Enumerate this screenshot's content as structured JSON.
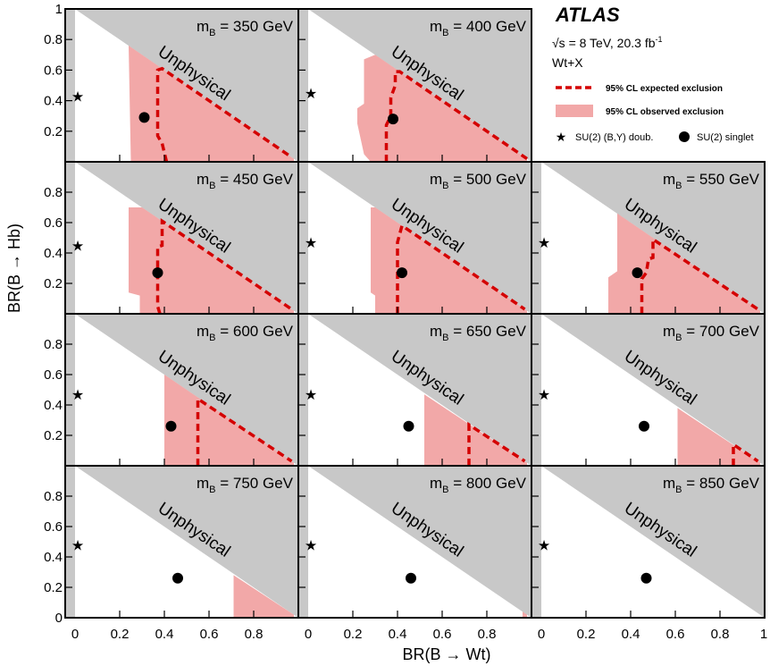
{
  "chart_data": {
    "type": "area",
    "experiment": "ATLAS",
    "energy_text": "√s = 8 TeV,  20.3 fb",
    "energy_sup": "-1",
    "channel": "Wt+X",
    "xlabel": "BR(B → Wt)",
    "ylabel": "BR(B → Hb)",
    "xlim": [
      0,
      1
    ],
    "ylim": [
      0,
      1
    ],
    "x_ticks": [
      "0",
      "0.2",
      "0.4",
      "0.6",
      "0.8",
      "1"
    ],
    "y_ticks": [
      "0.2",
      "0.4",
      "0.6",
      "0.8",
      "1"
    ],
    "y_ticks_inner": [
      "0.2",
      "0.4",
      "0.6",
      "0.8"
    ],
    "unphysical_label": "Unphysical",
    "legend": {
      "expected": "95% CL expected exclusion",
      "observed": "95% CL observed exclusion",
      "doublet": "SU(2) (B,Y) doub.",
      "singlet": "SU(2) singlet"
    },
    "colors": {
      "observed_fill": "#f2a8a8",
      "expected_line": "#d40000",
      "unphysical_fill": "#c8c8c8",
      "marker": "#000000"
    },
    "panels": [
      {
        "label": "m",
        "sub": "B",
        "mass": " = 350 GeV",
        "observed": [
          [
            0.3,
            0
          ],
          [
            0.25,
            0
          ],
          [
            0.24,
            0.76
          ],
          [
            0.37,
            0.63
          ],
          [
            0.98,
            0.02
          ],
          [
            0.98,
            0
          ]
        ],
        "expected": [
          [
            0.41,
            0
          ],
          [
            0.39,
            0.12
          ],
          [
            0.37,
            0.17
          ],
          [
            0.37,
            0.6
          ],
          [
            0.39,
            0.61
          ],
          [
            0.97,
            0.03
          ]
        ],
        "doublet": [
          0,
          0.43
        ],
        "singlet": [
          0.31,
          0.29
        ]
      },
      {
        "label": "m",
        "sub": "B",
        "mass": " = 400 GeV",
        "observed": [
          [
            0.28,
            0
          ],
          [
            0.25,
            0.05
          ],
          [
            0.22,
            0.25
          ],
          [
            0.22,
            0.35
          ],
          [
            0.25,
            0.38
          ],
          [
            0.25,
            0.67
          ],
          [
            0.3,
            0.7
          ],
          [
            0.98,
            0.02
          ],
          [
            0.98,
            0
          ]
        ],
        "expected": [
          [
            0.35,
            0
          ],
          [
            0.35,
            0.24
          ],
          [
            0.37,
            0.3
          ],
          [
            0.37,
            0.42
          ],
          [
            0.39,
            0.5
          ],
          [
            0.39,
            0.59
          ],
          [
            0.41,
            0.59
          ],
          [
            0.98,
            0.02
          ]
        ],
        "doublet": [
          0,
          0.45
        ],
        "singlet": [
          0.38,
          0.28
        ]
      },
      {
        "label": "m",
        "sub": "B",
        "mass": " = 450 GeV",
        "observed": [
          [
            0.29,
            0
          ],
          [
            0.29,
            0.12
          ],
          [
            0.24,
            0.14
          ],
          [
            0.24,
            0.7
          ],
          [
            0.3,
            0.7
          ],
          [
            0.98,
            0.02
          ],
          [
            0.98,
            0
          ]
        ],
        "expected": [
          [
            0.38,
            0
          ],
          [
            0.37,
            0.05
          ],
          [
            0.37,
            0.44
          ],
          [
            0.39,
            0.45
          ],
          [
            0.39,
            0.61
          ],
          [
            0.97,
            0.03
          ]
        ],
        "doublet": [
          0,
          0.45
        ],
        "singlet": [
          0.37,
          0.27
        ]
      },
      {
        "label": "m",
        "sub": "B",
        "mass": " = 500 GeV",
        "observed": [
          [
            0.3,
            0
          ],
          [
            0.3,
            0.12
          ],
          [
            0.28,
            0.14
          ],
          [
            0.28,
            0.7
          ],
          [
            0.3,
            0.7
          ],
          [
            0.98,
            0.02
          ],
          [
            0.98,
            0
          ]
        ],
        "expected": [
          [
            0.4,
            0
          ],
          [
            0.4,
            0.47
          ],
          [
            0.42,
            0.58
          ],
          [
            0.97,
            0.03
          ]
        ],
        "doublet": [
          0,
          0.47
        ],
        "singlet": [
          0.42,
          0.27
        ]
      },
      {
        "label": "m",
        "sub": "B",
        "mass": " = 550 GeV",
        "observed": [
          [
            0.3,
            0
          ],
          [
            0.3,
            0.24
          ],
          [
            0.34,
            0.28
          ],
          [
            0.34,
            0.66
          ],
          [
            0.98,
            0.02
          ],
          [
            0.98,
            0
          ]
        ],
        "expected": [
          [
            0.45,
            0
          ],
          [
            0.45,
            0.23
          ],
          [
            0.47,
            0.27
          ],
          [
            0.48,
            0.36
          ],
          [
            0.5,
            0.37
          ],
          [
            0.5,
            0.49
          ],
          [
            0.97,
            0.03
          ]
        ],
        "doublet": [
          0,
          0.47
        ],
        "singlet": [
          0.43,
          0.27
        ]
      },
      {
        "label": "m",
        "sub": "B",
        "mass": " = 600 GeV",
        "observed": [
          [
            0.4,
            0
          ],
          [
            0.4,
            0.6
          ],
          [
            0.98,
            0.02
          ],
          [
            0.98,
            0
          ]
        ],
        "expected": [
          [
            0.55,
            0
          ],
          [
            0.55,
            0.44
          ],
          [
            0.97,
            0.03
          ]
        ],
        "doublet": [
          0,
          0.47
        ],
        "singlet": [
          0.43,
          0.26
        ]
      },
      {
        "label": "m",
        "sub": "B",
        "mass": " = 650 GeV",
        "observed": [
          [
            0.52,
            0
          ],
          [
            0.52,
            0.47
          ],
          [
            0.98,
            0.02
          ],
          [
            0.98,
            0
          ]
        ],
        "expected": [
          [
            0.72,
            0
          ],
          [
            0.72,
            0.27
          ],
          [
            0.97,
            0.03
          ]
        ],
        "doublet": [
          0,
          0.47
        ],
        "singlet": [
          0.45,
          0.26
        ]
      },
      {
        "label": "m",
        "sub": "B",
        "mass": " = 700 GeV",
        "observed": [
          [
            0.61,
            0
          ],
          [
            0.61,
            0.38
          ],
          [
            0.98,
            0.02
          ],
          [
            0.98,
            0
          ]
        ],
        "expected": [
          [
            0.86,
            0
          ],
          [
            0.86,
            0.14
          ],
          [
            0.97,
            0.03
          ]
        ],
        "doublet": [
          0,
          0.47
        ],
        "singlet": [
          0.46,
          0.26
        ]
      },
      {
        "label": "m",
        "sub": "B",
        "mass": " = 750 GeV",
        "observed": [
          [
            0.71,
            0
          ],
          [
            0.71,
            0.28
          ],
          [
            0.98,
            0.02
          ],
          [
            0.98,
            0
          ]
        ],
        "expected": [],
        "doublet": [
          0,
          0.48
        ],
        "singlet": [
          0.46,
          0.26
        ]
      },
      {
        "label": "m",
        "sub": "B",
        "mass": " = 800 GeV",
        "observed": [
          [
            0.96,
            0
          ],
          [
            0.96,
            0.04
          ],
          [
            0.98,
            0.02
          ],
          [
            0.98,
            0
          ]
        ],
        "expected": [],
        "doublet": [
          0,
          0.48
        ],
        "singlet": [
          0.46,
          0.26
        ]
      },
      {
        "label": "m",
        "sub": "B",
        "mass": " = 850 GeV",
        "observed": [],
        "expected": [],
        "doublet": [
          0,
          0.48
        ],
        "singlet": [
          0.47,
          0.26
        ]
      }
    ]
  }
}
